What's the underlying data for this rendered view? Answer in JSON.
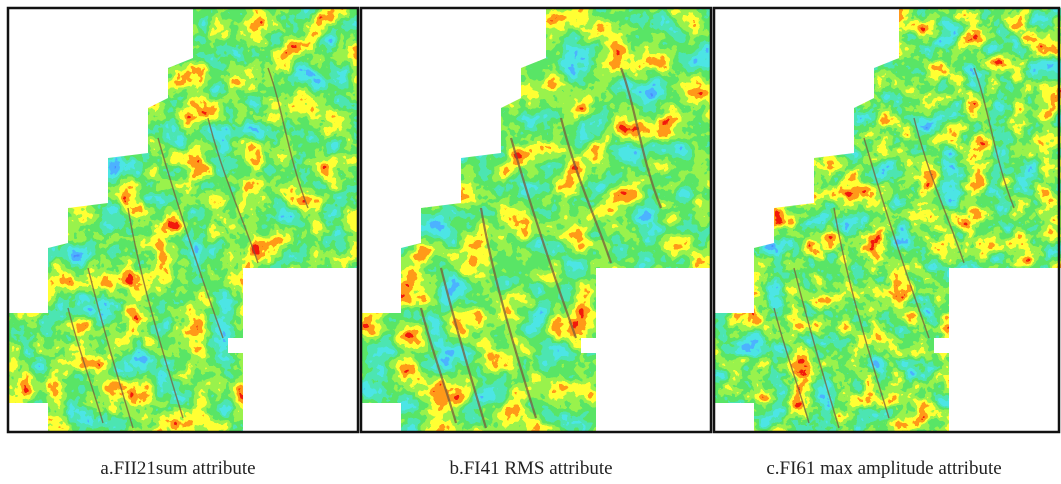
{
  "panels": [
    {
      "caption": "a.FII21sum attribute"
    },
    {
      "caption": "b.FI41 RMS attribute"
    },
    {
      "caption": "c.FI61 max amplitude attribute"
    }
  ]
}
